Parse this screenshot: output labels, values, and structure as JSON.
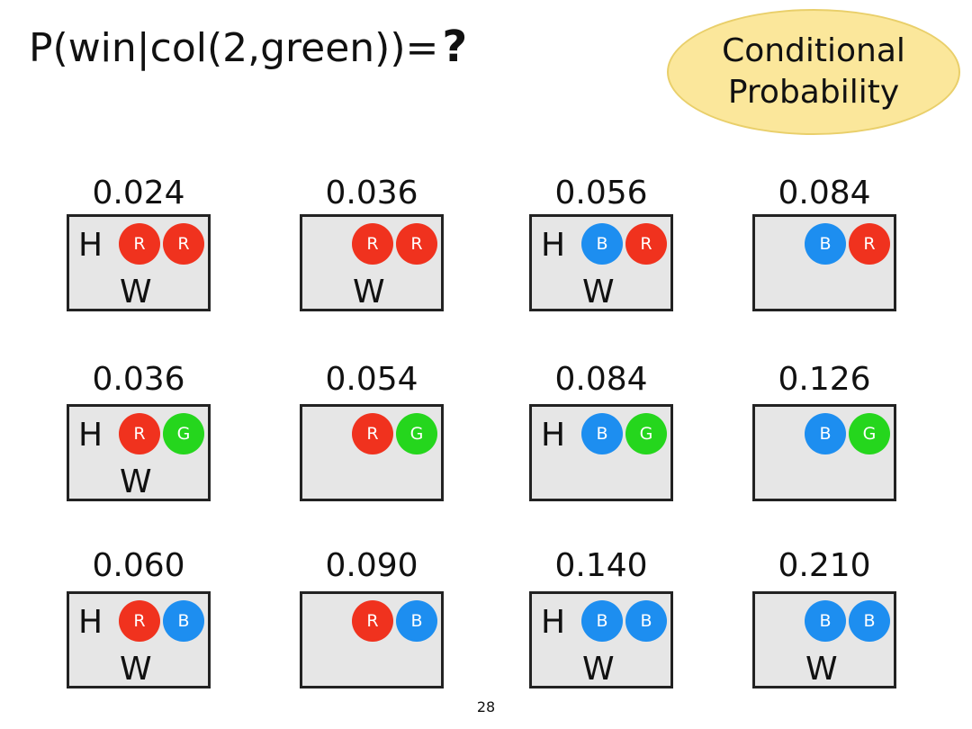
{
  "title": {
    "text": "P(win|col(2,green))=",
    "mark": "?"
  },
  "badge": {
    "line1": "Conditional",
    "line2": "Probability"
  },
  "colors": {
    "R": "#f0321e",
    "B": "#1d8ef0",
    "G": "#25d61d"
  },
  "grid": [
    [
      {
        "prob": "0.024",
        "h": "H",
        "w": "W",
        "balls": [
          "R",
          "R"
        ]
      },
      {
        "prob": "0.036",
        "h": "",
        "w": "W",
        "balls": [
          "R",
          "R"
        ]
      },
      {
        "prob": "0.056",
        "h": "H",
        "w": "W",
        "balls": [
          "B",
          "R"
        ]
      },
      {
        "prob": "0.084",
        "h": "",
        "w": "",
        "balls": [
          "B",
          "R"
        ]
      }
    ],
    [
      {
        "prob": "0.036",
        "h": "H",
        "w": "W",
        "balls": [
          "R",
          "G"
        ]
      },
      {
        "prob": "0.054",
        "h": "",
        "w": "",
        "balls": [
          "R",
          "G"
        ]
      },
      {
        "prob": "0.084",
        "h": "H",
        "w": "",
        "balls": [
          "B",
          "G"
        ]
      },
      {
        "prob": "0.126",
        "h": "",
        "w": "",
        "balls": [
          "B",
          "G"
        ]
      }
    ],
    [
      {
        "prob": "0.060",
        "h": "H",
        "w": "W",
        "balls": [
          "R",
          "B"
        ]
      },
      {
        "prob": "0.090",
        "h": "",
        "w": "",
        "balls": [
          "R",
          "B"
        ]
      },
      {
        "prob": "0.140",
        "h": "H",
        "w": "W",
        "balls": [
          "B",
          "B"
        ]
      },
      {
        "prob": "0.210",
        "h": "",
        "w": "W",
        "balls": [
          "B",
          "B"
        ]
      }
    ]
  ],
  "page_number": "28"
}
